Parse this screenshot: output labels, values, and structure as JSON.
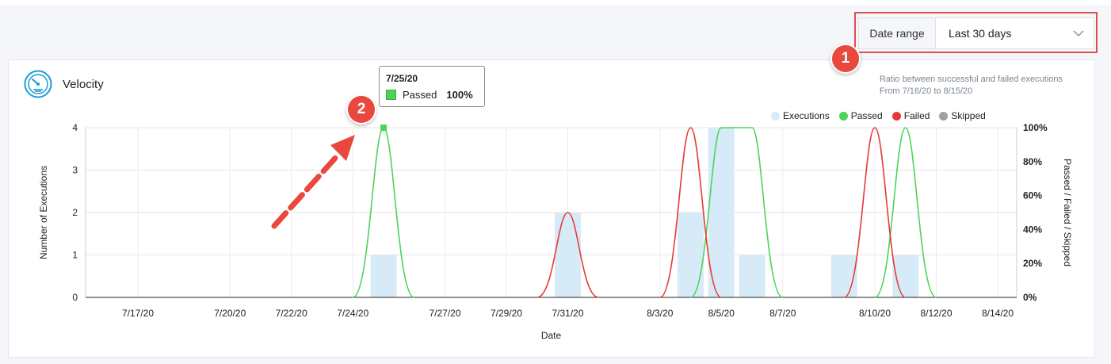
{
  "date_range": {
    "label": "Date range",
    "selected": "Last 30 days"
  },
  "callouts": [
    "1",
    "2"
  ],
  "card": {
    "title": "Velocity",
    "icon": "speedometer-icon",
    "subtitle_line1": "Ratio between successful and failed executions",
    "subtitle_line2": "From 7/16/20 to 8/15/20"
  },
  "legend": [
    {
      "name": "Executions",
      "color": "#d7eaf8"
    },
    {
      "name": "Passed",
      "color": "#4cd35a"
    },
    {
      "name": "Failed",
      "color": "#e53935"
    },
    {
      "name": "Skipped",
      "color": "#a0a0a0"
    }
  ],
  "tooltip": {
    "date": "7/25/20",
    "series": "Passed",
    "value": "100%"
  },
  "chart_data": {
    "type": "bar",
    "x_tick_labels": [
      "7/17/20",
      "7/20/20",
      "7/22/20",
      "7/24/20",
      "7/27/20",
      "7/29/20",
      "7/31/20",
      "8/3/20",
      "8/5/20",
      "8/7/20",
      "8/10/20",
      "8/12/20",
      "8/14/20"
    ],
    "xlabel": "Date",
    "ylabel": "Number of Executions",
    "ylabel_right": "Passed / Failed / Skipped",
    "ylim": [
      0,
      4
    ],
    "y_ticks": [
      "0",
      "1",
      "2",
      "3",
      "4"
    ],
    "y2_ticks": [
      "0%",
      "20%",
      "40%",
      "60%",
      "80%",
      "100%"
    ],
    "grid": true,
    "legend_position": "top-right",
    "executions": [
      {
        "date": "7/25/20",
        "value": 1
      },
      {
        "date": "7/31/20",
        "value": 2
      },
      {
        "date": "8/4/20",
        "value": 2
      },
      {
        "date": "8/5/20",
        "value": 4
      },
      {
        "date": "8/6/20",
        "value": 1
      },
      {
        "date": "8/9/20",
        "value": 1
      },
      {
        "date": "8/11/20",
        "value": 1
      }
    ],
    "series": [
      {
        "name": "Passed",
        "points": [
          {
            "date": "7/25/20",
            "value": 100
          },
          {
            "date": "8/5/20",
            "value": 100
          },
          {
            "date": "8/6/20",
            "value": 100
          },
          {
            "date": "8/11/20",
            "value": 100
          }
        ]
      },
      {
        "name": "Failed",
        "points": [
          {
            "date": "7/31/20",
            "value": 50
          },
          {
            "date": "8/4/20",
            "value": 100
          },
          {
            "date": "8/10/20",
            "value": 100
          }
        ]
      },
      {
        "name": "Skipped",
        "points": []
      }
    ]
  }
}
